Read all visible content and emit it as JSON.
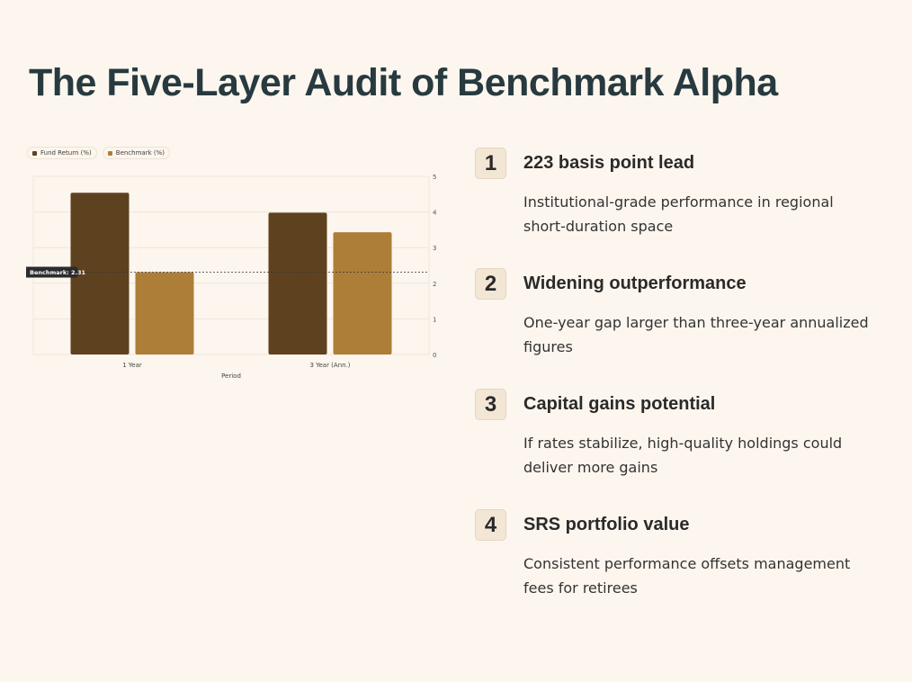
{
  "title": "The Five-Layer Audit of Benchmark Alpha",
  "colors": {
    "fund": "#5e421f",
    "benchmark": "#ad7e38",
    "background": "#fdf6ee",
    "title": "#273a3f",
    "badge_bg": "#f3e6d5"
  },
  "chart_data": {
    "type": "bar",
    "categories": [
      "1 Year",
      "3 Year (Ann.)"
    ],
    "series": [
      {
        "name": "Fund Return (%)",
        "values": [
          4.54,
          3.98
        ]
      },
      {
        "name": "Benchmark (%)",
        "values": [
          2.31,
          3.43
        ]
      }
    ],
    "xlabel": "Period",
    "ylabel": "",
    "ylim": [
      0,
      5
    ],
    "yticks": [
      "0",
      "1",
      "2",
      "3",
      "4",
      "5"
    ],
    "y_axis_side": "right",
    "grid": true,
    "legend_position": "top-left",
    "reference_line": {
      "label": "Benchmark: 2.31",
      "value": 2.31
    }
  },
  "points": [
    {
      "number": "1",
      "title": "223 basis point lead",
      "description": "Institutional-grade performance in regional short-duration space"
    },
    {
      "number": "2",
      "title": "Widening outperformance",
      "description": "One-year gap larger than three-year annualized figures"
    },
    {
      "number": "3",
      "title": "Capital gains potential",
      "description": "If rates stabilize, high-quality holdings could deliver more gains"
    },
    {
      "number": "4",
      "title": "SRS portfolio value",
      "description": "Consistent performance offsets management fees for retirees"
    }
  ]
}
